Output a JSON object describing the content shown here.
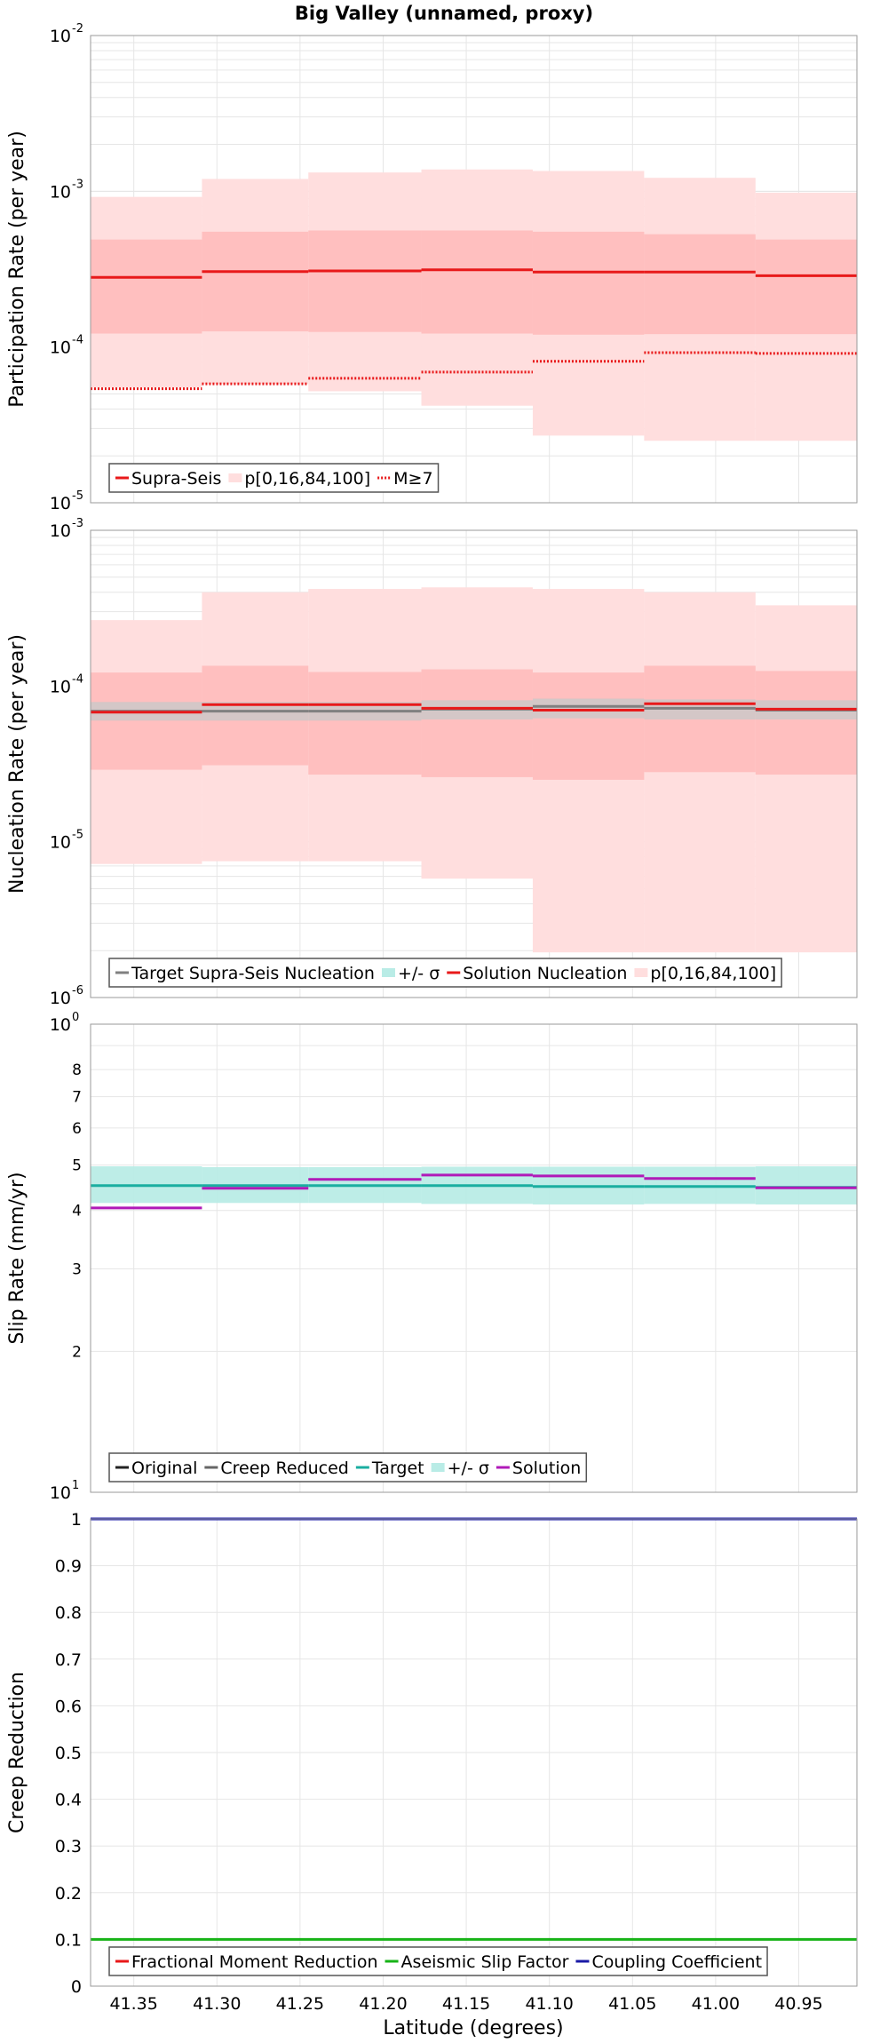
{
  "title": "Big Valley (unnamed, proxy)",
  "xlabel": "Latitude (degrees)",
  "x_ticks": [
    "41.35",
    "41.30",
    "41.25",
    "41.20",
    "41.15",
    "41.10",
    "41.05",
    "41.00",
    "40.95"
  ],
  "x_tick_values": [
    41.35,
    41.3,
    41.25,
    41.2,
    41.15,
    41.1,
    41.05,
    41.0,
    40.95
  ],
  "colors": {
    "red": "#e8191a",
    "band_light": "#ffdede",
    "band_dark": "#ffbfbf",
    "teal": "#1aaea0",
    "teal_band": "#b9ece6",
    "purple": "#b01ab8",
    "grey_band": "#c9c9c9",
    "green": "#17b317",
    "navy": "#1a1aa6",
    "grid": "#e6e6e6"
  },
  "chart_data": [
    {
      "id": "participation",
      "type": "line",
      "scale": "log",
      "ylabel": "Participation Rate (per year)",
      "xlim": [
        41.376,
        40.915
      ],
      "ylim": [
        1e-05,
        0.01
      ],
      "y_ticks": [
        {
          "base": "10",
          "exp": "-2",
          "value": 0.01
        },
        {
          "base": "10",
          "exp": "-3",
          "value": 0.001
        },
        {
          "base": "10",
          "exp": "-4",
          "value": 0.0001
        },
        {
          "base": "10",
          "exp": "-5",
          "value": 1e-05
        }
      ],
      "bins": [
        [
          41.376,
          41.309
        ],
        [
          41.309,
          41.245
        ],
        [
          41.245,
          41.177
        ],
        [
          41.177,
          41.11
        ],
        [
          41.11,
          41.043
        ],
        [
          41.043,
          40.976
        ],
        [
          40.976,
          40.915
        ]
      ],
      "bands": [
        {
          "name": "p[0,16,84,100]",
          "level": "outer",
          "lower": [
            5.5e-05,
            5.8e-05,
            5.2e-05,
            4.2e-05,
            2.7e-05,
            2.5e-05,
            2.5e-05
          ],
          "upper": [
            0.00092,
            0.0012,
            0.00132,
            0.00138,
            0.00135,
            0.00122,
            0.00098
          ]
        },
        {
          "name": "p[0,16,84,100]",
          "level": "inner",
          "lower": [
            0.000122,
            0.000126,
            0.000125,
            0.000122,
            0.00012,
            0.000121,
            0.000121
          ],
          "upper": [
            0.00049,
            0.00055,
            0.00056,
            0.00056,
            0.00055,
            0.00053,
            0.00049
          ]
        }
      ],
      "series": [
        {
          "name": "Supra-Seis",
          "style": "solid",
          "color": "#e8191a",
          "values": [
            0.00028,
            0.000305,
            0.000308,
            0.000313,
            0.000303,
            0.000303,
            0.000287
          ]
        },
        {
          "name": "M≥7",
          "style": "dotted",
          "color": "#e8191a",
          "values": [
            5.4e-05,
            5.8e-05,
            6.3e-05,
            6.9e-05,
            8.1e-05,
            9.2e-05,
            9.1e-05
          ]
        }
      ],
      "legend": {
        "position": "bottom-left",
        "items": [
          "Supra-Seis",
          "p[0,16,84,100]",
          "M≥7"
        ]
      }
    },
    {
      "id": "nucleation",
      "type": "line",
      "scale": "log",
      "ylabel": "Nucleation Rate (per year)",
      "xlim": [
        41.376,
        40.915
      ],
      "ylim": [
        1e-06,
        0.001
      ],
      "y_ticks": [
        {
          "base": "10",
          "exp": "-3",
          "value": 0.001
        },
        {
          "base": "10",
          "exp": "-4",
          "value": 0.0001
        },
        {
          "base": "10",
          "exp": "-5",
          "value": 1e-05
        },
        {
          "base": "10",
          "exp": "-6",
          "value": 1e-06
        }
      ],
      "bins": [
        [
          41.376,
          41.309
        ],
        [
          41.309,
          41.245
        ],
        [
          41.245,
          41.177
        ],
        [
          41.177,
          41.11
        ],
        [
          41.11,
          41.043
        ],
        [
          41.043,
          40.976
        ],
        [
          40.976,
          40.915
        ]
      ],
      "bands": [
        {
          "name": "p[0,16,84,100]",
          "level": "outer",
          "lower": [
            7.2e-06,
            7.5e-06,
            7.5e-06,
            5.8e-06,
            1.95e-06,
            1.95e-06,
            1.95e-06
          ],
          "upper": [
            0.000265,
            0.0004,
            0.00042,
            0.00043,
            0.00042,
            0.0004,
            0.00033
          ]
        },
        {
          "name": "p[0,16,84,100]",
          "level": "inner",
          "lower": [
            2.9e-05,
            3.1e-05,
            2.7e-05,
            2.6e-05,
            2.5e-05,
            2.8e-05,
            2.7e-05
          ],
          "upper": [
            0.000122,
            0.000135,
            0.000123,
            0.000128,
            0.000122,
            0.000135,
            0.000125
          ]
        },
        {
          "name": "+/- σ",
          "level": "sigma",
          "lower": [
            6e-05,
            6e-05,
            6e-05,
            6.1e-05,
            6.2e-05,
            6.1e-05,
            6.1e-05
          ],
          "upper": [
            7.9e-05,
            7.9e-05,
            7.9e-05,
            8.1e-05,
            8.3e-05,
            8.2e-05,
            8.1e-05
          ]
        }
      ],
      "series": [
        {
          "name": "Target Supra-Seis Nucleation",
          "style": "solid",
          "color": "#808080",
          "values": [
            6.9e-05,
            6.9e-05,
            6.9e-05,
            7.1e-05,
            7.4e-05,
            7.2e-05,
            7e-05
          ]
        },
        {
          "name": "Solution Nucleation",
          "style": "solid",
          "color": "#e8191a",
          "values": [
            6.8e-05,
            7.6e-05,
            7.6e-05,
            7.2e-05,
            7e-05,
            7.7e-05,
            7.1e-05
          ]
        }
      ],
      "legend": {
        "position": "bottom-left",
        "items": [
          "Target Supra-Seis Nucleation",
          "+/- σ",
          "Solution Nucleation",
          "p[0,16,84,100]"
        ]
      }
    },
    {
      "id": "sliprate",
      "type": "line",
      "scale": "log",
      "ylabel": "Slip Rate (mm/yr)",
      "xlim": [
        41.376,
        40.915
      ],
      "ylim": [
        1,
        10
      ],
      "y_ticks": [
        {
          "base": "10",
          "exp": "0",
          "value": 10
        },
        {
          "base": "10",
          "exp": "1",
          "value": 1
        }
      ],
      "y_minor_ticks": [
        "8",
        "7",
        "6",
        "5",
        "4",
        "3",
        "2"
      ],
      "y_minor_values": [
        8,
        7,
        6,
        5,
        4,
        3,
        2
      ],
      "bins": [
        [
          41.376,
          41.309
        ],
        [
          41.309,
          41.245
        ],
        [
          41.245,
          41.177
        ],
        [
          41.177,
          41.11
        ],
        [
          41.11,
          41.043
        ],
        [
          41.043,
          40.976
        ],
        [
          40.976,
          40.915
        ]
      ],
      "bands": [
        {
          "name": "+/- σ",
          "level": "sigma",
          "lower": [
            4.15,
            4.15,
            4.15,
            4.13,
            4.12,
            4.13,
            4.12
          ],
          "upper": [
            4.97,
            4.95,
            4.95,
            4.96,
            4.96,
            4.96,
            4.97
          ]
        }
      ],
      "series": [
        {
          "name": "Target",
          "style": "solid",
          "color": "#1aaea0",
          "values": [
            4.52,
            4.52,
            4.52,
            4.52,
            4.5,
            4.5,
            4.48
          ]
        },
        {
          "name": "Solution",
          "style": "solid",
          "color": "#b01ab8",
          "values": [
            4.05,
            4.46,
            4.66,
            4.76,
            4.74,
            4.68,
            4.47
          ]
        }
      ],
      "legend": {
        "position": "bottom-left",
        "items": [
          "Original",
          "Creep Reduced",
          "Target",
          "+/- σ",
          "Solution"
        ]
      }
    },
    {
      "id": "creep",
      "type": "line",
      "scale": "linear",
      "ylabel": "Creep Reduction",
      "xlim": [
        41.376,
        40.915
      ],
      "ylim": [
        0,
        1
      ],
      "y_ticks": [
        "1",
        "0.9",
        "0.8",
        "0.7",
        "0.6",
        "0.5",
        "0.4",
        "0.3",
        "0.2",
        "0.1",
        "0"
      ],
      "y_tick_values": [
        1,
        0.9,
        0.8,
        0.7,
        0.6,
        0.5,
        0.4,
        0.3,
        0.2,
        0.1,
        0
      ],
      "series": [
        {
          "name": "Aseismic Slip Factor",
          "style": "solid",
          "color": "#17b317",
          "values": [
            0.1
          ]
        },
        {
          "name": "Coupling Coefficient",
          "style": "solid",
          "color": "#1a1aa6",
          "values": [
            1.0
          ]
        }
      ],
      "legend": {
        "position": "bottom-left",
        "items": [
          "Fractional Moment Reduction",
          "Aseismic Slip Factor",
          "Coupling Coefficient"
        ]
      }
    }
  ]
}
